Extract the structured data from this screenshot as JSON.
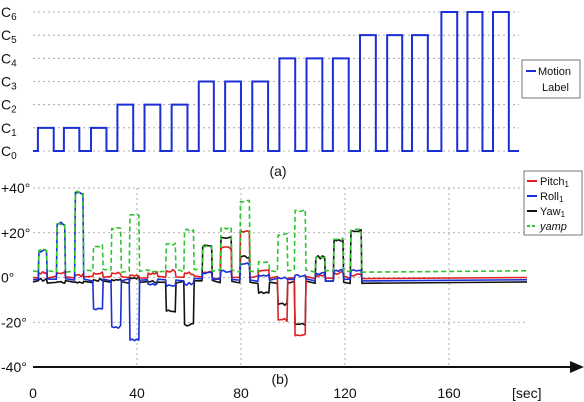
{
  "chart_data": [
    {
      "type": "line",
      "panel_label": "(a)",
      "y_tick_labels": [
        "C0",
        "C1",
        "C2",
        "C3",
        "C4",
        "C5",
        "C6"
      ],
      "ylim": [
        0,
        6
      ],
      "grid": true,
      "legend": {
        "placement": "right",
        "entries": [
          {
            "label_line1": "Motion",
            "label_line2": "Label",
            "color": "#1a2fd6"
          }
        ]
      },
      "series": [
        {
          "color": "#1a2fd6",
          "steps": [
            [
              0,
              0
            ],
            [
              1.3,
              1
            ],
            [
              5.5,
              0
            ],
            [
              8.2,
              1
            ],
            [
              12.3,
              0
            ],
            [
              15.4,
              1
            ],
            [
              19.5,
              0
            ],
            [
              22.4,
              2
            ],
            [
              26.6,
              0
            ],
            [
              29.6,
              2
            ],
            [
              33.8,
              0
            ],
            [
              36.8,
              2
            ],
            [
              41,
              0
            ],
            [
              44,
              3
            ],
            [
              48,
              0
            ],
            [
              51,
              3
            ],
            [
              55.2,
              0
            ],
            [
              58.2,
              3
            ],
            [
              62.4,
              0
            ],
            [
              65.4,
              4
            ],
            [
              69.6,
              0
            ],
            [
              72.6,
              4
            ],
            [
              76.8,
              0
            ],
            [
              79.6,
              4
            ],
            [
              83.8,
              0
            ],
            [
              86.8,
              5
            ],
            [
              91,
              0
            ],
            [
              94,
              5
            ],
            [
              98,
              0
            ],
            [
              100.6,
              5
            ],
            [
              104.8,
              0
            ],
            [
              108.4,
              6
            ],
            [
              112.6,
              0
            ],
            [
              115.3,
              6
            ],
            [
              119.3,
              0
            ],
            [
              122.1,
              6
            ],
            [
              126.3,
              0
            ]
          ],
          "x_end": 129
        }
      ]
    },
    {
      "type": "line",
      "panel_label": "(b)",
      "x_tick_values": [
        0,
        40,
        80,
        120,
        160
      ],
      "x_tick_labels": [
        "0",
        "40",
        "80",
        "120",
        "160"
      ],
      "x_unit": "[sec]",
      "xlim": [
        0,
        190
      ],
      "y_tick_values": [
        40,
        20,
        0,
        -20,
        -40
      ],
      "y_tick_labels": [
        "+40°",
        "+20°",
        "0°",
        "-20°",
        "-40°"
      ],
      "ylim": [
        -40,
        40
      ],
      "grid": true,
      "legend": {
        "placement": "top-right",
        "entries": [
          {
            "base": "Pitch",
            "sub": "1",
            "color": "#e02020"
          },
          {
            "base": "Roll",
            "sub": "1",
            "color": "#1a2fd6"
          },
          {
            "base": "Yaw",
            "sub": "1",
            "color": "#111111"
          },
          {
            "base": "yamp",
            "sub": "",
            "color": "#2ec52e",
            "italic": true,
            "dashed": true
          }
        ]
      },
      "series": [
        {
          "name": "Pitch1",
          "color": "#e02020",
          "baseline": 0,
          "pulses": [
            [
              2,
              5.5,
              2
            ],
            [
              9,
              12.5,
              2
            ],
            [
              16,
              19.5,
              1
            ],
            [
              23,
              27,
              2
            ],
            [
              30,
              34,
              2
            ],
            [
              37,
              41,
              1
            ],
            [
              44,
              48,
              2
            ],
            [
              51,
              55,
              3
            ],
            [
              58,
              62,
              2
            ],
            [
              65,
              69,
              2
            ],
            [
              72,
              76.5,
              13
            ],
            [
              79.5,
              83.5,
              21
            ],
            [
              86.5,
              91,
              3
            ],
            [
              94,
              98,
              -19
            ],
            [
              100.5,
              105,
              -26
            ],
            [
              108.5,
              112.5,
              1
            ],
            [
              115.5,
              119.5,
              2
            ],
            [
              122,
              126.5,
              1
            ]
          ]
        },
        {
          "name": "Roll1",
          "color": "#1a2fd6",
          "baseline": -1,
          "pulses": [
            [
              2,
              5.5,
              12
            ],
            [
              9,
              12.5,
              24
            ],
            [
              16,
              19.5,
              38
            ],
            [
              23,
              27,
              -14
            ],
            [
              30,
              34,
              -22
            ],
            [
              37,
              41,
              -28
            ],
            [
              44,
              48,
              -3
            ],
            [
              51,
              55,
              -4
            ],
            [
              58,
              62,
              -3
            ],
            [
              65,
              69,
              2
            ],
            [
              72,
              76.5,
              3
            ],
            [
              79.5,
              83.5,
              6
            ],
            [
              86.5,
              91,
              1
            ],
            [
              94,
              98,
              0
            ],
            [
              100.5,
              105,
              1
            ],
            [
              108.5,
              112.5,
              2
            ],
            [
              115.5,
              119.5,
              3
            ],
            [
              122,
              126.5,
              3
            ]
          ]
        },
        {
          "name": "Yaw1",
          "color": "#111111",
          "baseline": -2,
          "pulses": [
            [
              2,
              5.5,
              -1
            ],
            [
              9,
              12.5,
              -2
            ],
            [
              16,
              19.5,
              -2
            ],
            [
              23,
              27,
              -1
            ],
            [
              30,
              34,
              -1
            ],
            [
              37,
              41,
              0
            ],
            [
              44,
              48,
              -2
            ],
            [
              51,
              55,
              -15
            ],
            [
              58,
              62,
              -21
            ],
            [
              65,
              69,
              14
            ],
            [
              72,
              76.5,
              18
            ],
            [
              79.5,
              83.5,
              9
            ],
            [
              86.5,
              91,
              -7
            ],
            [
              94,
              98,
              -12
            ],
            [
              100.5,
              105,
              -21
            ],
            [
              108.5,
              112.5,
              9
            ],
            [
              115.5,
              119.5,
              17
            ],
            [
              122,
              126.5,
              21
            ]
          ]
        },
        {
          "name": "yamp",
          "color": "#2ec52e",
          "dashed": true,
          "baseline": 3,
          "pulses": [
            [
              2,
              5.5,
              12
            ],
            [
              9,
              12.5,
              24
            ],
            [
              16,
              19.5,
              38
            ],
            [
              23,
              27,
              14
            ],
            [
              30,
              34,
              22
            ],
            [
              37,
              41,
              28
            ],
            [
              44,
              48,
              3
            ],
            [
              51,
              55,
              15
            ],
            [
              58,
              62,
              21
            ],
            [
              65,
              69,
              14
            ],
            [
              72,
              76.5,
              22
            ],
            [
              79.5,
              83.5,
              34
            ],
            [
              86.5,
              91,
              7
            ],
            [
              94,
              98,
              19
            ],
            [
              100.5,
              105,
              30
            ],
            [
              108.5,
              112.5,
              9
            ],
            [
              115.5,
              119.5,
              17
            ],
            [
              122,
              126.5,
              21
            ]
          ]
        }
      ]
    }
  ]
}
